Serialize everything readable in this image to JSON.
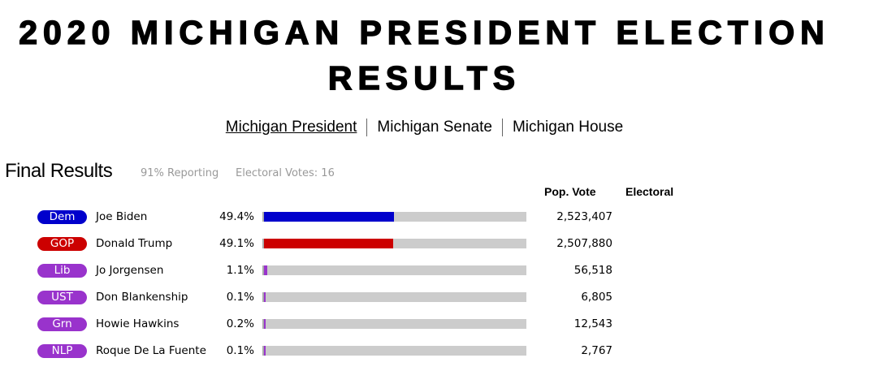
{
  "title": "2020 MICHIGAN PRESIDENT ELECTION RESULTS",
  "nav": [
    "Michigan President",
    "Michigan Senate",
    "Michigan House"
  ],
  "results": {
    "heading": "Final Results",
    "reporting": "91% Reporting",
    "electoral_votes": "Electoral Votes: 16",
    "col_pop": "Pop. Vote",
    "col_electoral": "Electoral"
  },
  "candidates": [
    {
      "party": "Dem",
      "name": "Joe Biden",
      "pct": "49.4%",
      "share": 49.4,
      "votes": "2,523,407",
      "color": "#0000cc"
    },
    {
      "party": "GOP",
      "name": "Donald Trump",
      "pct": "49.1%",
      "share": 49.1,
      "votes": "2,507,880",
      "color": "#cc0000"
    },
    {
      "party": "Lib",
      "name": "Jo Jorgensen",
      "pct": "1.1%",
      "share": 1.1,
      "votes": "56,518",
      "color": "#9933cc"
    },
    {
      "party": "UST",
      "name": "Don Blankenship",
      "pct": "0.1%",
      "share": 0.1,
      "votes": "6,805",
      "color": "#9933cc"
    },
    {
      "party": "Grn",
      "name": "Howie Hawkins",
      "pct": "0.2%",
      "share": 0.2,
      "votes": "12,543",
      "color": "#9933cc"
    },
    {
      "party": "NLP",
      "name": "Roque De La Fuente",
      "pct": "0.1%",
      "share": 0.1,
      "votes": "2,767",
      "color": "#9933cc"
    }
  ]
}
